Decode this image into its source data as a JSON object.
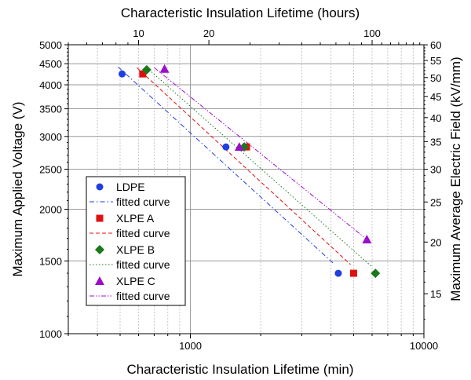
{
  "chart_data": {
    "type": "scatter",
    "x_axis": {
      "label": "Characteristic Insulation Lifetime (min)",
      "scale": "log",
      "range": [
        300,
        10000
      ],
      "ticks": [
        1000,
        10000
      ],
      "tick_labels": [
        "1000",
        "10000"
      ]
    },
    "y_axis": {
      "label": "Maximum Applied Voltage (V)",
      "scale": "log",
      "range": [
        1000,
        5000
      ],
      "ticks": [
        1000,
        1500,
        2000,
        2500,
        3000,
        3500,
        4000,
        4500,
        5000
      ],
      "tick_labels": [
        "1000",
        "1500",
        "2000",
        "2500",
        "3000",
        "3500",
        "4000",
        "4500",
        "5000"
      ]
    },
    "x2_axis": {
      "label": "Characteristic Insulation Lifetime (hours)",
      "ticks": [
        10,
        20,
        100
      ],
      "tick_labels": [
        "10",
        "20",
        "100"
      ]
    },
    "y2_axis": {
      "label": "Maximum Average Electric Field (kV/mm)",
      "ticks": [
        15,
        20,
        25,
        30,
        35,
        40,
        45,
        50,
        55,
        60
      ],
      "tick_labels": [
        "15",
        "20",
        "25",
        "30",
        "35",
        "40",
        "45",
        "50",
        "55",
        "60"
      ]
    },
    "grid": true,
    "legend_position": "bottom-left",
    "series": [
      {
        "name": "LDPE",
        "marker": "circle",
        "color": "#1f3fe0",
        "points": [
          [
            510,
            4250
          ],
          [
            1420,
            2830
          ],
          [
            4300,
            1400
          ]
        ],
        "fit_name": "fitted curve",
        "fit_style": "dashdot",
        "fit_line": [
          [
            490,
            4420
          ],
          [
            4150,
            1470
          ]
        ]
      },
      {
        "name": "XLPE A",
        "marker": "square",
        "color": "#e01010",
        "points": [
          [
            625,
            4250
          ],
          [
            1740,
            2830
          ],
          [
            5000,
            1400
          ]
        ],
        "fit_name": "fitted curve",
        "fit_style": "dashed",
        "fit_line": [
          [
            590,
            4400
          ],
          [
            4850,
            1470
          ]
        ]
      },
      {
        "name": "XLPE B",
        "marker": "diamond",
        "color": "#1a7a1a",
        "points": [
          [
            650,
            4350
          ],
          [
            1700,
            2830
          ],
          [
            6200,
            1400
          ]
        ],
        "fit_name": "fitted curve",
        "fit_style": "dotted",
        "fit_line": [
          [
            650,
            4400
          ],
          [
            6000,
            1450
          ]
        ]
      },
      {
        "name": "XLPE C",
        "marker": "triangle",
        "color": "#9a10c8",
        "points": [
          [
            775,
            4370
          ],
          [
            1620,
            2830
          ],
          [
            5700,
            1690
          ]
        ],
        "fit_name": "fitted curve",
        "fit_style": "dashdotdot",
        "fit_line": [
          [
            700,
            4400
          ],
          [
            5700,
            1690
          ]
        ]
      }
    ]
  }
}
